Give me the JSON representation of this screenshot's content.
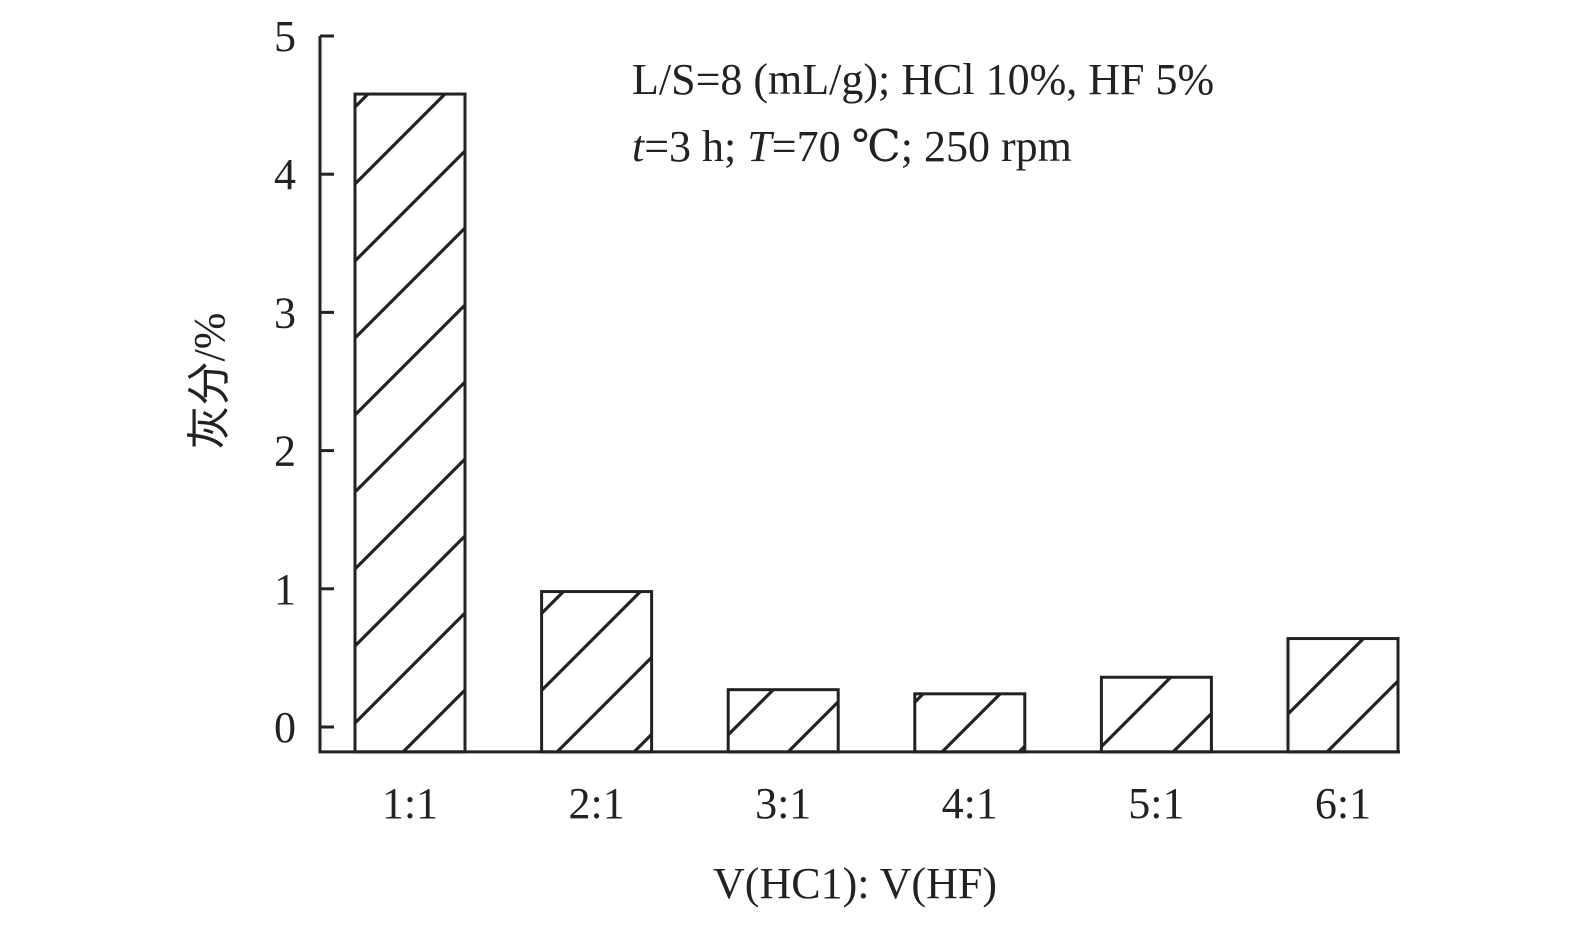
{
  "chart_data": {
    "type": "bar",
    "categories": [
      "1:1",
      "2:1",
      "3:1",
      "4:1",
      "5:1",
      "6:1"
    ],
    "values": [
      4.58,
      0.98,
      0.27,
      0.24,
      0.36,
      0.64
    ],
    "title": "",
    "xlabel": "V(HC1): V(HF)",
    "ylabel": "灰分/%",
    "ylim": [
      -0.18,
      5
    ],
    "yticks": [
      0,
      1,
      2,
      3,
      4,
      5
    ],
    "grid": false,
    "bar_fill": "hatched",
    "bar_color": "#222222",
    "annotation": {
      "line1": "L/S=8 (mL/g); HCl 10%, HF 5%",
      "line2_t": "t",
      "line2_a": "=3 h; ",
      "line2_T": "T",
      "line2_b": "=70 ℃; 250 rpm"
    }
  }
}
